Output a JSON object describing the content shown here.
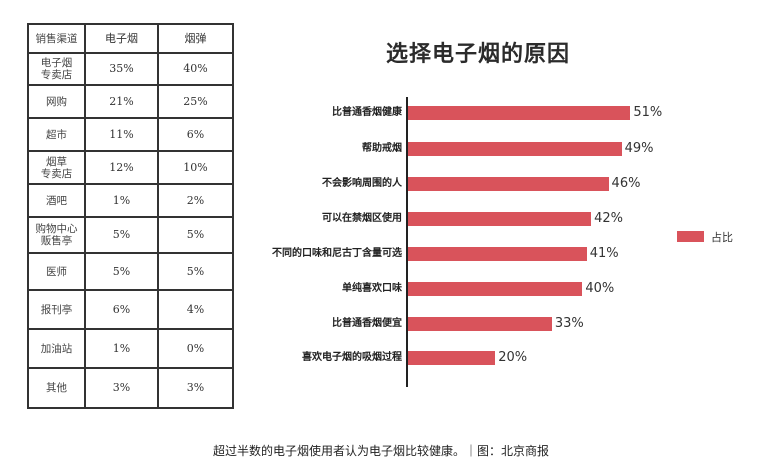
{
  "table": {
    "headers": [
      "销售渠道",
      "电子烟",
      "烟弹"
    ],
    "rows": [
      [
        "电子烟\n专卖店",
        "35%",
        "40%"
      ],
      [
        "网购",
        "21%",
        "25%"
      ],
      [
        "超市",
        "11%",
        "6%"
      ],
      [
        "烟草\n专卖店",
        "12%",
        "10%"
      ],
      [
        "酒吧",
        "1%",
        "2%"
      ],
      [
        "购物中心\n贩售亭",
        "5%",
        "5%"
      ],
      [
        "医师",
        "5%",
        "5%"
      ],
      [
        "报刊亭",
        "6%",
        "4%"
      ],
      [
        "加油站",
        "1%",
        "0%"
      ],
      [
        "其他",
        "3%",
        "3%"
      ]
    ]
  },
  "chart": {
    "title": "选择电子烟的原因",
    "legend_label": "占比",
    "bar_color": "#d9535b"
  },
  "chart_data": [
    {
      "type": "table",
      "title": "",
      "columns": [
        "销售渠道",
        "电子烟",
        "烟弹"
      ],
      "rows": [
        [
          "电子烟专卖店",
          35,
          40
        ],
        [
          "网购",
          21,
          25
        ],
        [
          "超市",
          11,
          6
        ],
        [
          "烟草专卖店",
          12,
          10
        ],
        [
          "酒吧",
          1,
          2
        ],
        [
          "购物中心贩售亭",
          5,
          5
        ],
        [
          "医师",
          5,
          5
        ],
        [
          "报刊亭",
          6,
          4
        ],
        [
          "加油站",
          1,
          0
        ],
        [
          "其他",
          3,
          3
        ]
      ],
      "unit": "%"
    },
    {
      "type": "bar",
      "orientation": "horizontal",
      "title": "选择电子烟的原因",
      "categories": [
        "比普通香烟健康",
        "帮助戒烟",
        "不会影响周围的人",
        "可以在禁烟区使用",
        "不同的口味和尼古丁含量可选",
        "单纯喜欢口味",
        "比普通香烟便宜",
        "喜欢电子烟的吸烟过程"
      ],
      "series": [
        {
          "name": "占比",
          "values": [
            51,
            49,
            46,
            42,
            41,
            40,
            33,
            20
          ]
        }
      ],
      "value_labels": [
        "51%",
        "49%",
        "46%",
        "42%",
        "41%",
        "40%",
        "33%",
        "20%"
      ],
      "xlabel": "",
      "ylabel": "",
      "grid": false,
      "legend_position": "right"
    }
  ],
  "bars": [
    {
      "label": "比普通香烟健康",
      "value": 51,
      "text": "51%"
    },
    {
      "label": "帮助戒烟",
      "value": 49,
      "text": "49%"
    },
    {
      "label": "不会影响周围的人",
      "value": 46,
      "text": "46%"
    },
    {
      "label": "可以在禁烟区使用",
      "value": 42,
      "text": "42%"
    },
    {
      "label": "不同的口味和尼古丁含量可选",
      "value": 41,
      "text": "41%"
    },
    {
      "label": "单纯喜欢口味",
      "value": 40,
      "text": "40%"
    },
    {
      "label": "比普通香烟便宜",
      "value": 33,
      "text": "33%"
    },
    {
      "label": "喜欢电子烟的吸烟过程",
      "value": 20,
      "text": "20%"
    }
  ],
  "caption": "超过半数的电子烟使用者认为电子烟比较健康。｜图：北京商报"
}
